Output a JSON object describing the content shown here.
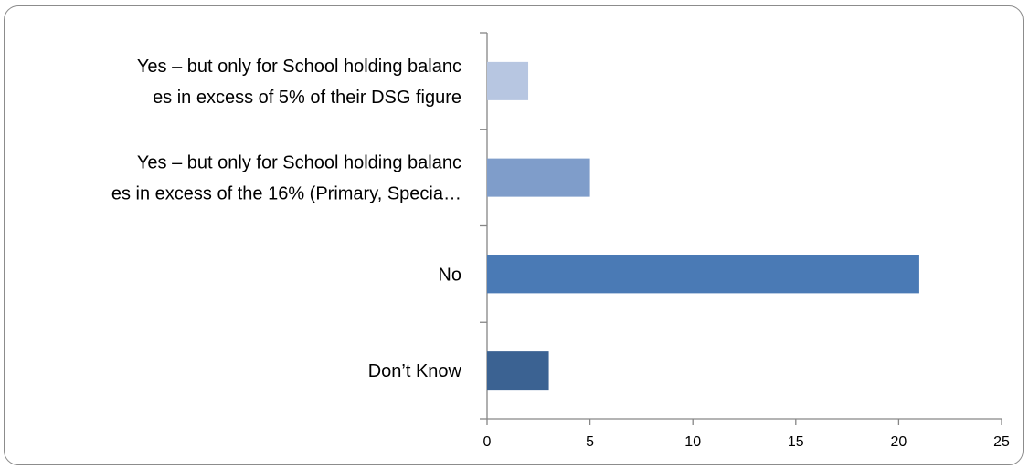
{
  "chart_data": {
    "type": "bar",
    "orientation": "horizontal",
    "categories": [
      {
        "lines": [
          "Yes – but only for School holding balanc",
          "es in excess of 5% of their DSG figure"
        ],
        "value": 2,
        "color": "#b7c6e1"
      },
      {
        "lines": [
          "Yes – but only for School holding balanc",
          "es in excess of the 16% (Primary, Specia…"
        ],
        "value": 5,
        "color": "#7f9dca"
      },
      {
        "lines": [
          "No"
        ],
        "value": 21,
        "color": "#4a7ab5"
      },
      {
        "lines": [
          "Don’t Know"
        ],
        "value": 3,
        "color": "#3b6292"
      }
    ],
    "xlim": [
      0,
      25
    ],
    "xticks": [
      "0",
      "5",
      "10",
      "15",
      "20",
      "25"
    ],
    "grid": false,
    "legend": "none"
  }
}
